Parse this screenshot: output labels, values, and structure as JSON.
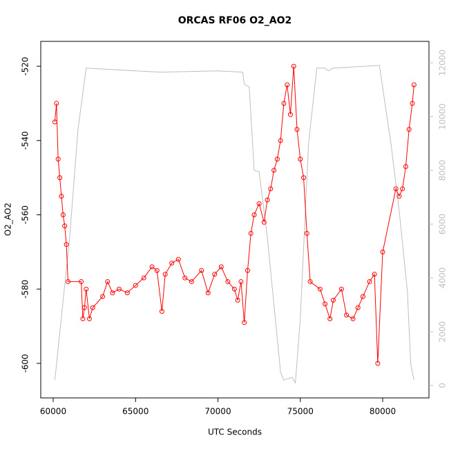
{
  "chart_data": {
    "type": "line",
    "title": "ORCAS RF06 O2_AO2",
    "x_label": "UTC Seconds",
    "y_label": "O2_AO2",
    "xlim": [
      59245,
      82809
    ],
    "ylim": [
      -609.3,
      -513.3
    ],
    "y2lim": [
      -462,
      12795
    ],
    "xticks": [
      60000,
      65000,
      70000,
      75000,
      80000
    ],
    "yticks": [
      -600,
      -580,
      -560,
      -540,
      -520
    ],
    "y2ticks": [
      0,
      2000,
      4000,
      6000,
      8000,
      10000,
      12000
    ],
    "series": [
      {
        "color": "#ff0000",
        "marker": "circle",
        "x": [
          60100,
          60200,
          60300,
          60400,
          60500,
          60600,
          60700,
          60800,
          60900,
          61700,
          61800,
          61900,
          62000,
          62200,
          62400,
          63000,
          63300,
          63600,
          64000,
          64500,
          65000,
          65500,
          66000,
          66300,
          66600,
          66800,
          67200,
          67600,
          68000,
          68400,
          69000,
          69400,
          69800,
          70200,
          70600,
          71000,
          71200,
          71400,
          71600,
          71800,
          72000,
          72200,
          72500,
          72800,
          73000,
          73200,
          73400,
          73600,
          73800,
          74000,
          74200,
          74400,
          74600,
          74800,
          75000,
          75200,
          75400,
          75600,
          76200,
          76500,
          76800,
          77000,
          77500,
          77800,
          78200,
          78500,
          78800,
          79200,
          79500,
          79700,
          80000,
          80800,
          81000,
          81200,
          81400,
          81600,
          81800,
          81900
        ],
        "values": [
          -535,
          -530,
          -545,
          -550,
          -555,
          -560,
          -563,
          -568,
          -578,
          -578,
          -588,
          -585,
          -580,
          -588,
          -585,
          -582,
          -578,
          -581,
          -580,
          -581,
          -579,
          -577,
          -574,
          -575,
          -586,
          -576,
          -573,
          -572,
          -577,
          -578,
          -575,
          -581,
          -576,
          -574,
          -578,
          -580,
          -583,
          -578,
          -589,
          -575,
          -565,
          -560,
          -557,
          -562,
          -556,
          -553,
          -548,
          -545,
          -540,
          -530,
          -525,
          -533,
          -520,
          -537,
          -545,
          -550,
          -565,
          -578,
          -580,
          -584,
          -588,
          -583,
          -580,
          -587,
          -588,
          -585,
          -582,
          -578,
          -576,
          -600,
          -570,
          -553,
          -555,
          -553,
          -547,
          -537,
          -530,
          -525
        ]
      },
      {
        "color": "#bebebe",
        "axis": "y2",
        "x": [
          60100,
          61000,
          61500,
          62000,
          65000,
          66500,
          70000,
          71500,
          71600,
          71900,
          72200,
          72500,
          73000,
          73800,
          74000,
          74500,
          74700,
          75000,
          75500,
          76000,
          76500,
          76700,
          77000,
          79800,
          80500,
          81000,
          81500,
          81700,
          81900
        ],
        "values": [
          200,
          5500,
          9500,
          11800,
          11700,
          11650,
          11700,
          11650,
          11200,
          11100,
          8000,
          7950,
          5500,
          500,
          200,
          300,
          100,
          2500,
          9000,
          11800,
          11800,
          11700,
          11800,
          11900,
          9000,
          6500,
          3500,
          800,
          200
        ]
      }
    ]
  }
}
